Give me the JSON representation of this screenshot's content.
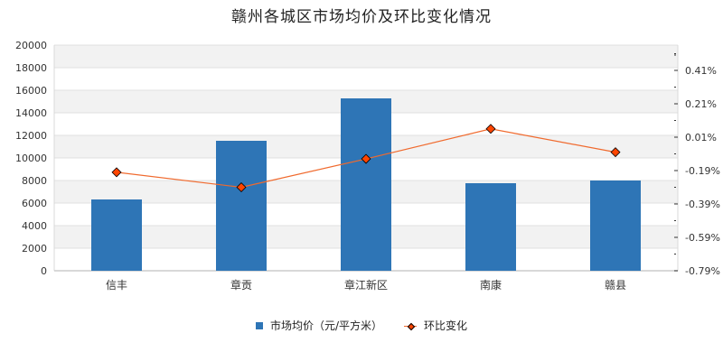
{
  "chart_data": {
    "type": "bar+line",
    "title": "赣州各城区市场均价及环比变化情况",
    "categories": [
      "信丰",
      "章贡",
      "章江新区",
      "南康",
      "赣县"
    ],
    "series": [
      {
        "name": "市场均价（元/平方米）",
        "type": "bar",
        "axis": "left",
        "color": "#2e75b6",
        "values": [
          6320,
          11520,
          15280,
          7760,
          8000
        ]
      },
      {
        "name": "环比变化",
        "type": "line",
        "axis": "right",
        "color": "#f06a2e",
        "marker_color": "#ff4500",
        "unit": "%",
        "values": [
          -0.2,
          -0.29,
          -0.12,
          0.06,
          -0.08
        ]
      }
    ],
    "left_axis": {
      "ylim": [
        0,
        20000
      ],
      "ticks": [
        "0",
        "2000",
        "4000",
        "6000",
        "8000",
        "10000",
        "12000",
        "14000",
        "16000",
        "18000",
        "20000"
      ]
    },
    "right_axis": {
      "ylim": [
        -0.79,
        0.56
      ],
      "ticks": [
        "-0.79%",
        "-0.59%",
        "-0.39%",
        "-0.19%",
        "0.01%",
        "0.21%",
        "0.41%"
      ]
    },
    "grid": true,
    "legend_position": "bottom"
  },
  "legend": {
    "bar_label": "市场均价（元/平方米）",
    "line_label": "环比变化"
  }
}
